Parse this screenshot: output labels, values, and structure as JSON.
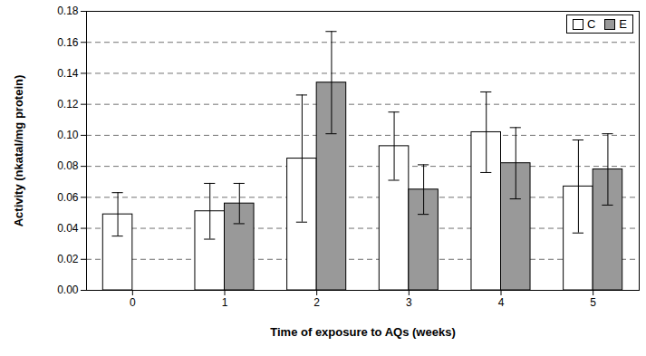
{
  "chart_data": {
    "type": "bar",
    "x_label": "Time of exposure to AQs (weeks)",
    "y_label": "Activity (nkatal/mg protein)",
    "categories": [
      "0",
      "1",
      "2",
      "3",
      "4",
      "5"
    ],
    "series": [
      {
        "name": "C",
        "color": "#ffffff",
        "values": [
          0.049,
          0.051,
          0.085,
          0.093,
          0.102,
          0.067
        ],
        "errors": [
          0.014,
          0.018,
          0.041,
          0.022,
          0.026,
          0.03
        ]
      },
      {
        "name": "E",
        "color": "#999999",
        "values": [
          null,
          0.056,
          0.134,
          0.065,
          0.082,
          0.078
        ],
        "errors": [
          null,
          0.013,
          0.033,
          0.016,
          0.023,
          0.023
        ]
      }
    ],
    "ylim": [
      0,
      0.18
    ],
    "yticks": [
      {
        "value": 0,
        "label": "0.00"
      },
      {
        "value": 0.02,
        "label": "0.02"
      },
      {
        "value": 0.04,
        "label": "0.04"
      },
      {
        "value": 0.06,
        "label": "0.06"
      },
      {
        "value": 0.08,
        "label": "0.08"
      },
      {
        "value": 0.1,
        "label": "0.10"
      },
      {
        "value": 0.12,
        "label": "0.12"
      },
      {
        "value": 0.14,
        "label": "0.14"
      },
      {
        "value": 0.16,
        "label": "0.16"
      },
      {
        "value": 0.18,
        "label": "0.18"
      }
    ],
    "grid": true,
    "legend": "top-right"
  }
}
